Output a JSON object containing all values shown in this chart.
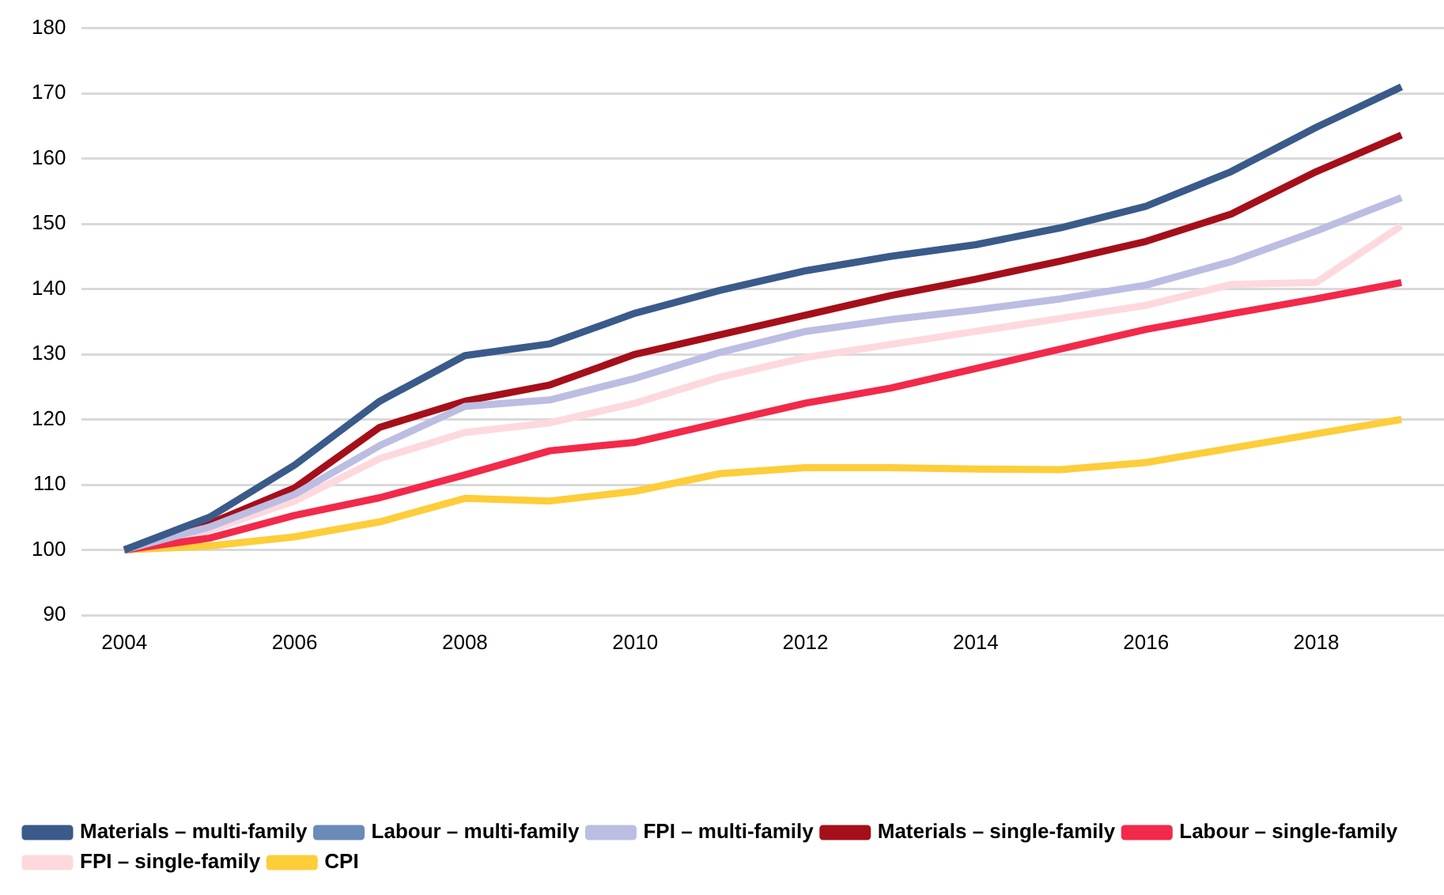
{
  "chart_data": {
    "type": "line",
    "categories": [
      "2004",
      null,
      "2006",
      null,
      "2008",
      null,
      "2010",
      null,
      "2012",
      null,
      "2014",
      null,
      "2016",
      null,
      "2018",
      null
    ],
    "ylim": [
      90,
      180
    ],
    "yticks": [
      90,
      100,
      110,
      120,
      130,
      140,
      150,
      160,
      170,
      180
    ],
    "grid": "y",
    "legend": "bottom",
    "marker": "none",
    "line_style": "solid",
    "series": [
      {
        "name": "Materials – multi-family",
        "color": "#3a5a8a",
        "values": [
          100,
          105,
          113,
          122.8,
          129.8,
          131.6,
          136.3,
          139.8,
          142.8,
          145,
          146.8,
          149.4,
          152.7,
          158,
          164.8,
          171
        ]
      },
      {
        "name": "Labour – multi-family",
        "color": "#6a8ab8",
        "values": [
          null,
          null,
          null,
          null,
          null,
          null,
          null,
          null,
          null,
          null,
          null,
          null,
          null,
          null,
          null,
          null
        ]
      },
      {
        "name": "FPI – multi-family",
        "color": "#bcbde2",
        "values": [
          100,
          103.5,
          108.5,
          116,
          122,
          123,
          126.3,
          130.3,
          133.5,
          135.3,
          136.8,
          138.5,
          140.6,
          144.2,
          148.9,
          154
        ]
      },
      {
        "name": "Materials – single-family",
        "color": "#a50f1a",
        "values": [
          100,
          104,
          109.5,
          118.8,
          122.8,
          125.3,
          130,
          133,
          136,
          139,
          141.5,
          144.3,
          147.3,
          151.5,
          158,
          163.6
        ]
      },
      {
        "name": "Labour – single-family",
        "color": "#f2294a",
        "values": [
          100,
          101.8,
          105.3,
          108,
          111.5,
          115.2,
          116.5,
          119.5,
          122.5,
          124.8,
          127.8,
          130.8,
          133.8,
          136.2,
          138.5,
          141
        ]
      },
      {
        "name": "FPI – single-family",
        "color": "#fdd9de",
        "values": [
          100,
          103,
          107.5,
          114,
          118,
          119.5,
          122.5,
          126.5,
          129.5,
          131.5,
          133.5,
          135.5,
          137.5,
          140.7,
          141,
          149.7
        ]
      },
      {
        "name": "CPI",
        "color": "#fdcd3a",
        "values": [
          100,
          100.6,
          102,
          104.3,
          107.9,
          107.5,
          109,
          111.7,
          112.6,
          112.6,
          112.4,
          112.3,
          113.4,
          115.6,
          117.8,
          120
        ]
      }
    ]
  }
}
